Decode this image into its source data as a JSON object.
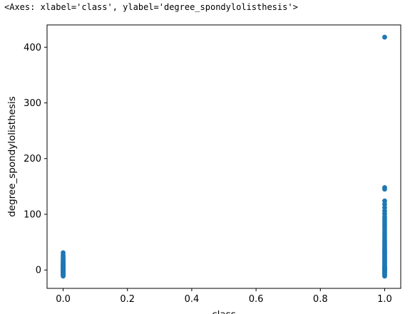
{
  "header": {
    "repr_text": "<Axes: xlabel='class', ylabel='degree_spondylolisthesis'>"
  },
  "chart_data": {
    "type": "scatter",
    "title": "",
    "xlabel": "class",
    "ylabel": "degree_spondylolisthesis",
    "xlim": [
      -0.05,
      1.05
    ],
    "ylim": [
      -33,
      440
    ],
    "xticks": [
      0.0,
      0.2,
      0.4,
      0.6,
      0.8,
      1.0
    ],
    "xtick_labels": [
      "0.0",
      "0.2",
      "0.4",
      "0.6",
      "0.8",
      "1.0"
    ],
    "yticks": [
      0,
      100,
      200,
      300,
      400
    ],
    "ytick_labels": [
      "0",
      "100",
      "200",
      "300",
      "400"
    ],
    "grid": false,
    "marker_color": "#1f77b4",
    "series": [
      {
        "x": [
          0,
          0,
          0,
          0,
          0,
          0,
          0,
          0,
          0,
          0,
          0,
          0,
          0,
          0,
          0,
          0,
          0,
          0,
          0,
          0,
          0,
          0,
          0,
          0,
          0,
          0,
          0,
          0,
          0,
          0,
          0,
          0,
          0,
          0,
          0,
          0,
          0,
          0,
          0,
          0
        ],
        "y": [
          31,
          27,
          24,
          22,
          20,
          18,
          16,
          14,
          13,
          12,
          11,
          10,
          9,
          8,
          7,
          6,
          5,
          4,
          4,
          3,
          3,
          2,
          2,
          1,
          1,
          0,
          0,
          -1,
          -1,
          -2,
          -2,
          -3,
          -4,
          -5,
          -6,
          -7,
          -8,
          -9,
          -10,
          -11
        ]
      },
      {
        "x": [
          1,
          1,
          1,
          1,
          1,
          1,
          1,
          1,
          1,
          1,
          1,
          1,
          1,
          1,
          1,
          1,
          1,
          1,
          1,
          1,
          1,
          1,
          1,
          1,
          1,
          1,
          1,
          1,
          1,
          1,
          1,
          1,
          1,
          1,
          1,
          1,
          1,
          1,
          1,
          1,
          1,
          1,
          1,
          1,
          1,
          1,
          1,
          1,
          1,
          1,
          1,
          1,
          1,
          1
        ],
        "y": [
          418,
          148,
          145,
          124,
          118,
          112,
          106,
          101,
          96,
          92,
          88,
          84,
          80,
          76,
          72,
          68,
          64,
          60,
          56,
          53,
          50,
          47,
          44,
          41,
          38,
          36,
          34,
          32,
          30,
          28,
          26,
          24,
          22,
          20,
          18,
          16,
          14,
          12,
          10,
          8,
          6,
          5,
          4,
          3,
          2,
          1,
          0,
          -1,
          -2,
          -3,
          -5,
          -7,
          -9,
          -11
        ]
      }
    ]
  }
}
